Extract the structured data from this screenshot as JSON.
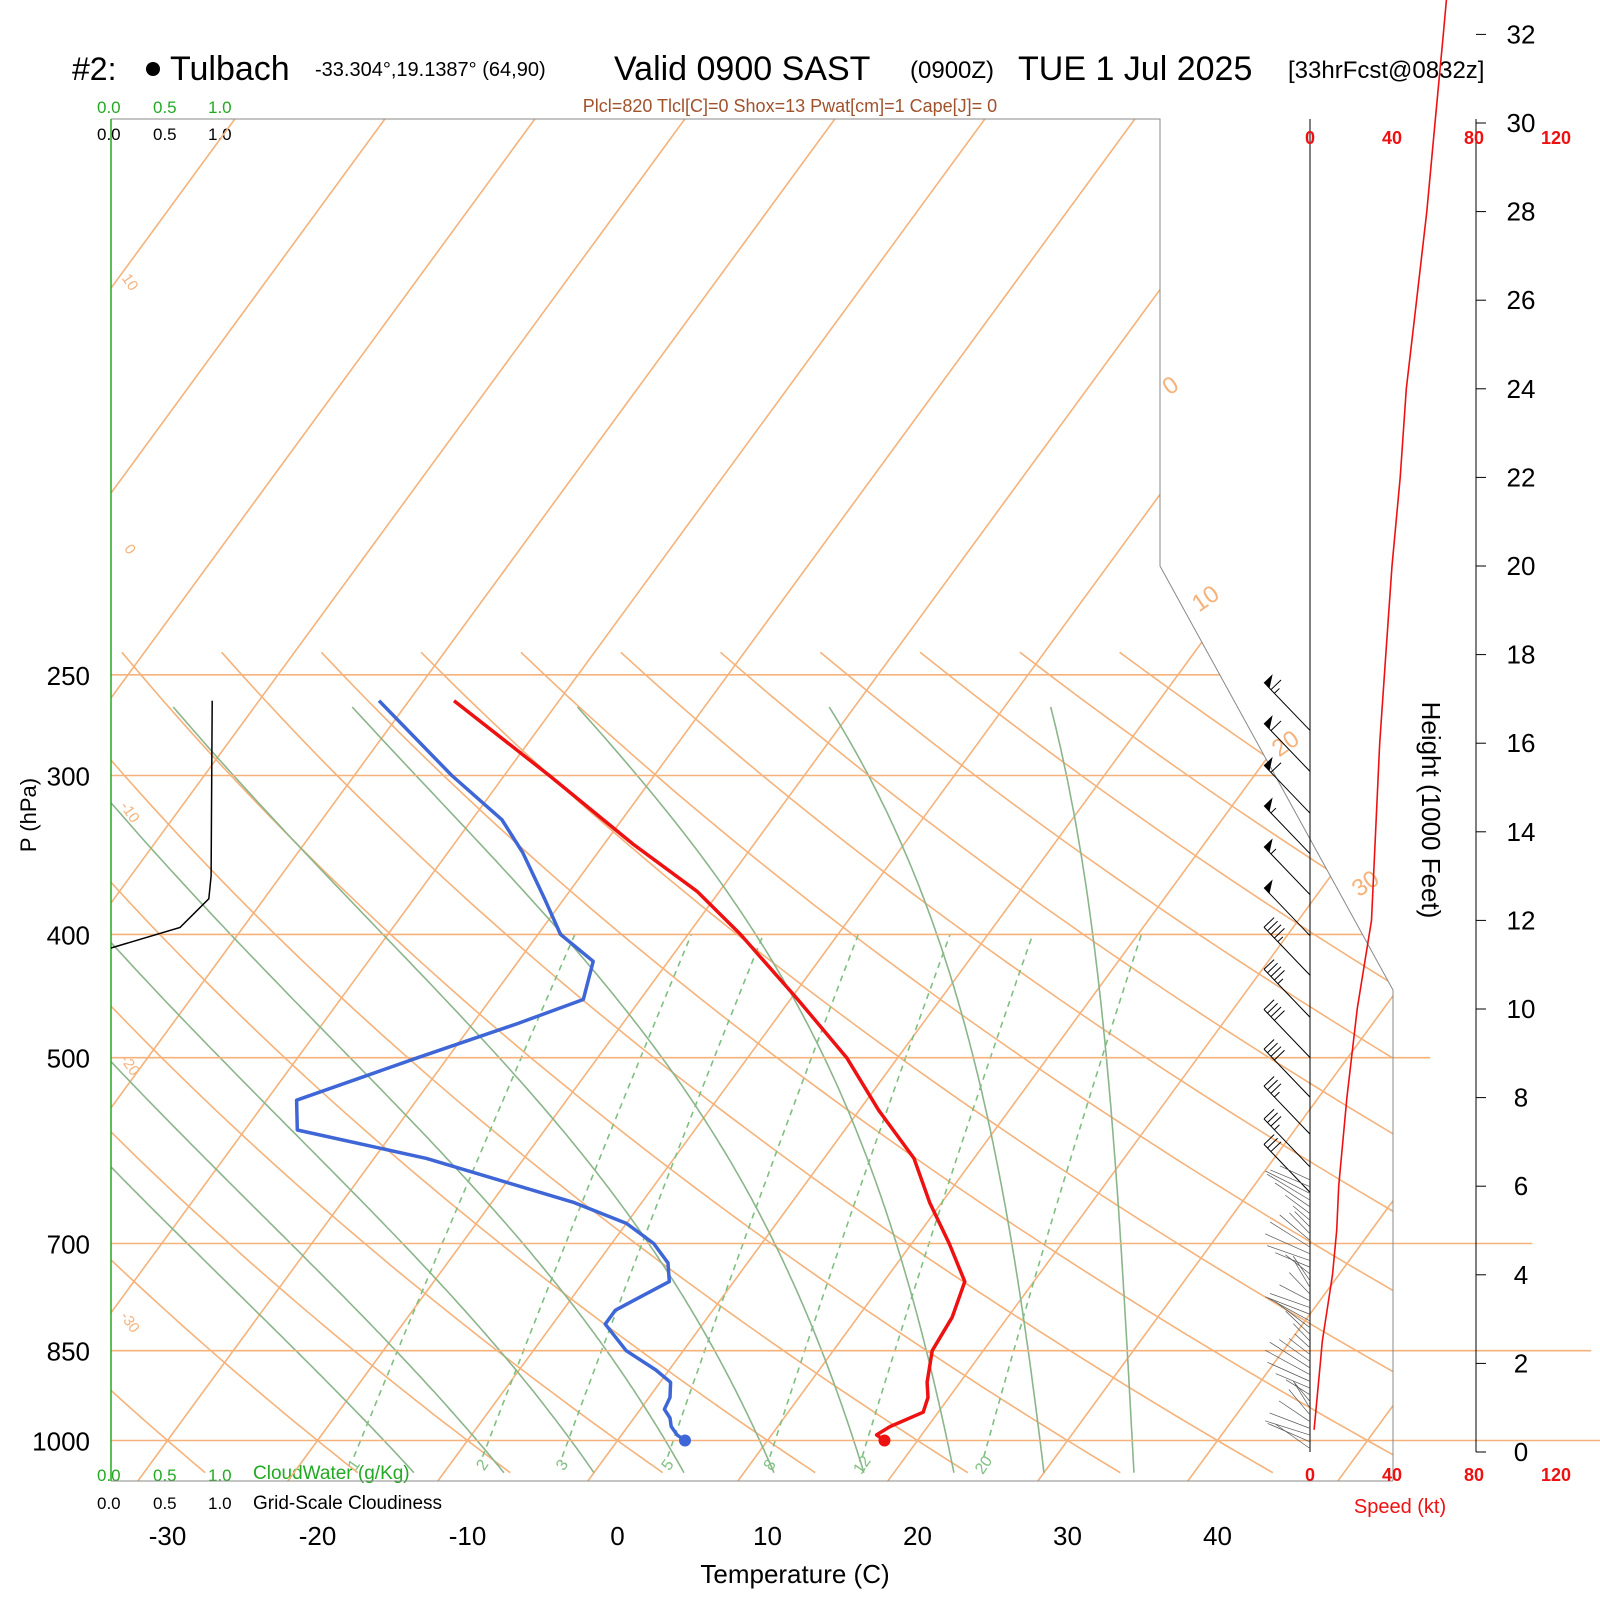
{
  "header": {
    "title_prefix": "#2:",
    "location": "Tulbach",
    "coords": "-33.304°,19.1387° (64,90)",
    "valid": "Valid 0900 SAST",
    "zulu": "(0900Z)",
    "date": "TUE 1 Jul 2025",
    "forecast": "[33hrFcst@0832z]",
    "params": "Plcl=820 Tlcl[C]=0 Shox=13 Pwat[cm]=1 Cape[J]= 0"
  },
  "colors": {
    "temperature": "#ee1111",
    "dewpoint": "#3f66d6",
    "isotherm": "#f5b27a",
    "dry_adiabat": "#8bb58b",
    "mixing_ratio": "#7fbf7f",
    "cloudwater": "#22aa22",
    "speed": "#ee1111"
  },
  "chart_data": {
    "type": "line",
    "title": "#2: Tulbach Valid 0900 SAST (0900Z) TUE 1 Jul 2025",
    "xlabel": "Temperature (C)",
    "ylabel": "P (hPa)",
    "right_ylabel": "Height (1000 Feet)",
    "x_ticks": [
      -30,
      -20,
      -10,
      0,
      10,
      20,
      30,
      40
    ],
    "pressure_ticks": [
      250,
      300,
      400,
      500,
      700,
      850,
      1000
    ],
    "height_ticks": [
      0,
      2,
      4,
      6,
      8,
      10,
      12,
      14,
      16,
      18,
      20,
      22,
      24,
      26,
      28,
      30,
      32
    ],
    "isotherm_labels": [
      "10",
      "0",
      "-10",
      "-20",
      "-30"
    ],
    "isotherm_labels_right": [
      "0",
      "10",
      "20",
      "30"
    ],
    "mixing_ratio_labels": [
      "1",
      "2",
      "3",
      "5",
      "8",
      "12",
      "20"
    ],
    "cloud_scale": [
      "0.0",
      "0.5",
      "1.0"
    ],
    "cloudwater_label": "CloudWater (g/Kg)",
    "cloudiness_label": "Grid-Scale Cloudiness",
    "speed_ticks": [
      "0",
      "40",
      "80",
      "120"
    ],
    "speed_label": "Speed (kt)",
    "temperature": [
      {
        "p": 1000,
        "t": 17.8
      },
      {
        "p": 990,
        "t": 17.0
      },
      {
        "p": 975,
        "t": 17.5
      },
      {
        "p": 950,
        "t": 19.0
      },
      {
        "p": 925,
        "t": 18.6
      },
      {
        "p": 900,
        "t": 17.8
      },
      {
        "p": 850,
        "t": 16.6
      },
      {
        "p": 800,
        "t": 16.3
      },
      {
        "p": 750,
        "t": 15.4
      },
      {
        "p": 700,
        "t": 12.5
      },
      {
        "p": 650,
        "t": 9.2
      },
      {
        "p": 600,
        "t": 6.0
      },
      {
        "p": 550,
        "t": 1.3
      },
      {
        "p": 500,
        "t": -3.4
      },
      {
        "p": 450,
        "t": -9.5
      },
      {
        "p": 400,
        "t": -16.5
      },
      {
        "p": 370,
        "t": -21.5
      },
      {
        "p": 340,
        "t": -28.0
      },
      {
        "p": 300,
        "t": -37.0
      },
      {
        "p": 262,
        "t": -47.0
      }
    ],
    "dewpoint": [
      {
        "p": 1000,
        "t": 4.5
      },
      {
        "p": 990,
        "t": 3.7
      },
      {
        "p": 975,
        "t": 2.9
      },
      {
        "p": 960,
        "t": 2.4
      },
      {
        "p": 945,
        "t": 1.6
      },
      {
        "p": 925,
        "t": 1.4
      },
      {
        "p": 900,
        "t": 0.7
      },
      {
        "p": 880,
        "t": -0.9
      },
      {
        "p": 850,
        "t": -3.8
      },
      {
        "p": 810,
        "t": -6.5
      },
      {
        "p": 790,
        "t": -6.5
      },
      {
        "p": 775,
        "t": -5.7
      },
      {
        "p": 750,
        "t": -4.3
      },
      {
        "p": 725,
        "t": -5.3
      },
      {
        "p": 700,
        "t": -7.2
      },
      {
        "p": 675,
        "t": -10.0
      },
      {
        "p": 650,
        "t": -14.5
      },
      {
        "p": 600,
        "t": -26.5
      },
      {
        "p": 570,
        "t": -36.5
      },
      {
        "p": 540,
        "t": -38.0
      },
      {
        "p": 500,
        "t": -32.0
      },
      {
        "p": 470,
        "t": -27.0
      },
      {
        "p": 450,
        "t": -23.8
      },
      {
        "p": 420,
        "t": -25.0
      },
      {
        "p": 400,
        "t": -28.5
      },
      {
        "p": 375,
        "t": -31.3
      },
      {
        "p": 345,
        "t": -35.0
      },
      {
        "p": 325,
        "t": -38.0
      },
      {
        "p": 300,
        "t": -43.5
      },
      {
        "p": 262,
        "t": -52.0
      }
    ],
    "cloudiness": [
      {
        "p": 262,
        "v": 0.88
      },
      {
        "p": 360,
        "v": 0.87
      },
      {
        "p": 375,
        "v": 0.85
      },
      {
        "p": 395,
        "v": 0.6
      },
      {
        "p": 410,
        "v": 0.0
      }
    ],
    "speed_profile": [
      {
        "h": 0.5,
        "s": 2
      },
      {
        "h": 2.0,
        "s": 5
      },
      {
        "h": 2.5,
        "s": 6
      },
      {
        "h": 4.0,
        "s": 11
      },
      {
        "h": 5.0,
        "s": 13
      },
      {
        "h": 6.0,
        "s": 14
      },
      {
        "h": 8.0,
        "s": 18
      },
      {
        "h": 10.0,
        "s": 23
      },
      {
        "h": 12.0,
        "s": 30
      },
      {
        "h": 14.0,
        "s": 32
      },
      {
        "h": 16.0,
        "s": 34
      },
      {
        "h": 18.0,
        "s": 37
      },
      {
        "h": 20.0,
        "s": 40
      },
      {
        "h": 22.0,
        "s": 44
      },
      {
        "h": 24.0,
        "s": 47
      },
      {
        "h": 26.0,
        "s": 52
      },
      {
        "h": 28.0,
        "s": 57
      },
      {
        "h": 30.0,
        "s": 61
      },
      {
        "h": 32.0,
        "s": 65
      },
      {
        "h": 33.0,
        "s": 67
      }
    ],
    "barbs_upper": [
      {
        "p": 260,
        "kt": 65
      },
      {
        "p": 280,
        "kt": 62
      },
      {
        "p": 302,
        "kt": 60
      },
      {
        "p": 325,
        "kt": 57
      },
      {
        "p": 350,
        "kt": 55
      },
      {
        "p": 377,
        "kt": 52
      },
      {
        "p": 405,
        "kt": 48
      },
      {
        "p": 437,
        "kt": 46
      },
      {
        "p": 470,
        "kt": 44
      },
      {
        "p": 505,
        "kt": 41
      },
      {
        "p": 540,
        "kt": 38
      },
      {
        "p": 573,
        "kt": 35
      },
      {
        "p": 600,
        "kt": 33
      }
    ],
    "barbs_lower_top": 615,
    "barbs_lower_bottom": 1000
  }
}
